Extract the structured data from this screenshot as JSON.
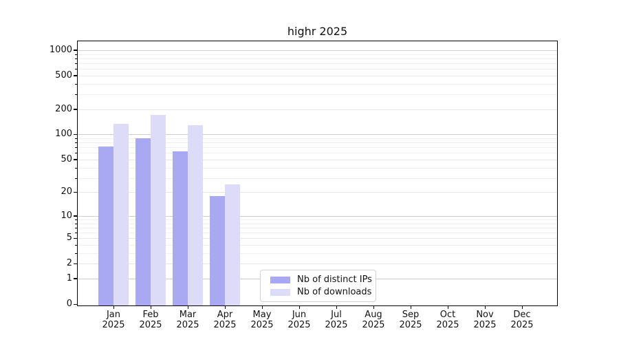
{
  "title": "highr 2025",
  "chart_data": {
    "type": "bar",
    "title": "highr 2025",
    "categories": [
      "Jan 2025",
      "Feb 2025",
      "Mar 2025",
      "Apr 2025",
      "May 2025",
      "Jun 2025",
      "Jul 2025",
      "Aug 2025",
      "Sep 2025",
      "Oct 2025",
      "Nov 2025",
      "Dec 2025"
    ],
    "series": [
      {
        "name": "Nb of distinct IPs",
        "color": "#a9a9f3",
        "values": [
          72,
          90,
          63,
          18,
          0,
          0,
          0,
          0,
          0,
          0,
          0,
          0
        ]
      },
      {
        "name": "Nb of downloads",
        "color": "#dcdcf8",
        "values": [
          135,
          170,
          128,
          25,
          0,
          0,
          0,
          0,
          0,
          0,
          0,
          0
        ]
      }
    ],
    "xlabel": "",
    "ylabel": "",
    "yscale": "log(1+x)",
    "ylim": [
      0,
      1290
    ],
    "yticks": [
      0,
      1,
      2,
      5,
      10,
      20,
      50,
      100,
      200,
      500,
      1000
    ],
    "yticks_major_decades": [
      1,
      10,
      100,
      1000
    ],
    "yticks_minor": [
      3,
      4,
      6,
      7,
      8,
      9,
      30,
      40,
      60,
      70,
      80,
      90,
      300,
      400,
      600,
      700,
      800,
      900
    ],
    "grid": "horizontal",
    "legend_position": "lower center-left"
  }
}
